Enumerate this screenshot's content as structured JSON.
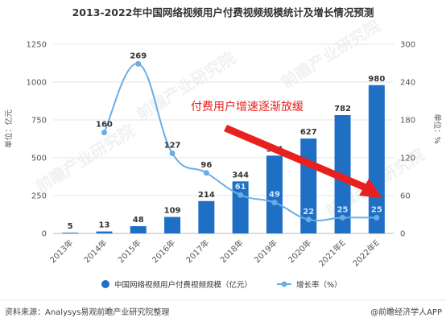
{
  "chart_data": {
    "type": "bar",
    "title": "2013-2022年中国网络视频用户付费视频规模统计及增长情况预测",
    "categories": [
      "2013年",
      "2014年",
      "2015年",
      "2016年",
      "2017年",
      "2018年",
      "2019年",
      "2020年",
      "2021年E",
      "2022年E"
    ],
    "series": [
      {
        "name": "中国网络视频用户付费视频规模（亿元）",
        "type": "bar",
        "axis": "left",
        "values": [
          5,
          13,
          48,
          109,
          214,
          344,
          514,
          627,
          782,
          980
        ],
        "color": "#1f6fc5"
      },
      {
        "name": "增长率（%）",
        "type": "line",
        "axis": "right",
        "values": [
          null,
          160,
          269,
          127,
          96,
          61,
          49,
          22,
          25,
          25
        ],
        "color": "#6aaee6"
      }
    ],
    "ylabel_left": "单位：亿元",
    "ylabel_right": "单位：%",
    "ylim_left": [
      0,
      1250
    ],
    "ylim_right": [
      0,
      300
    ],
    "yticks_left": [
      0,
      250,
      500,
      750,
      1000,
      1250
    ],
    "yticks_right": [
      0,
      60,
      120,
      180,
      240,
      300
    ],
    "grid": true,
    "legend_position": "bottom",
    "annotation": "付费用户增速逐渐放缓",
    "arrow_color": "#e8201e"
  },
  "footer": {
    "source": "资料来源：Analysys易观前瞻产业研究院整理",
    "brand": "@前瞻经济学人APP"
  },
  "watermark": "前瞻产业研究院"
}
